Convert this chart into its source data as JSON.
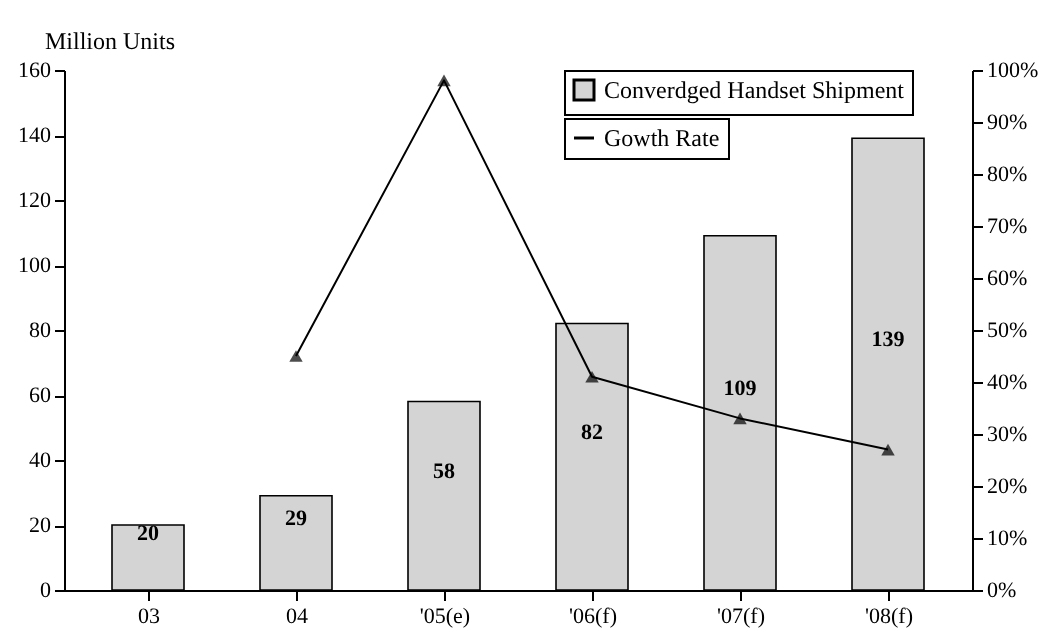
{
  "chart_data": {
    "type": "bar",
    "ylabel": "Million Units",
    "categories": [
      "03",
      "04",
      "'05(e)",
      "'06(f)",
      "'07(f)",
      "'08(f)"
    ],
    "series": [
      {
        "name": "Converdged Handset Shipment",
        "color": "#d4d4d4",
        "values": [
          20,
          29,
          58,
          82,
          109,
          139
        ],
        "data_labels": true
      },
      {
        "name": "Gowth Rate",
        "type": "line",
        "axis": "y2",
        "color": "#000000",
        "marker": "triangle",
        "values": [
          null,
          45,
          98,
          41,
          33,
          27
        ]
      }
    ],
    "ylim": [
      0,
      160
    ],
    "yticks": [
      0,
      20,
      40,
      60,
      80,
      100,
      120,
      140,
      160
    ],
    "y2lim": [
      0,
      100
    ],
    "y2ticks": [
      {
        "value": 0,
        "label": "0%"
      },
      {
        "value": 10,
        "label": "10%"
      },
      {
        "value": 20,
        "label": "20%"
      },
      {
        "value": 30,
        "label": "30%"
      },
      {
        "value": 40,
        "label": "40%"
      },
      {
        "value": 50,
        "label": "50%"
      },
      {
        "value": 60,
        "label": "60%"
      },
      {
        "value": 70,
        "label": "70%"
      },
      {
        "value": 80,
        "label": "80%"
      },
      {
        "value": 90,
        "label": "90%"
      },
      {
        "value": 100,
        "label": "100%"
      }
    ],
    "grid": false,
    "legend": "top right"
  }
}
